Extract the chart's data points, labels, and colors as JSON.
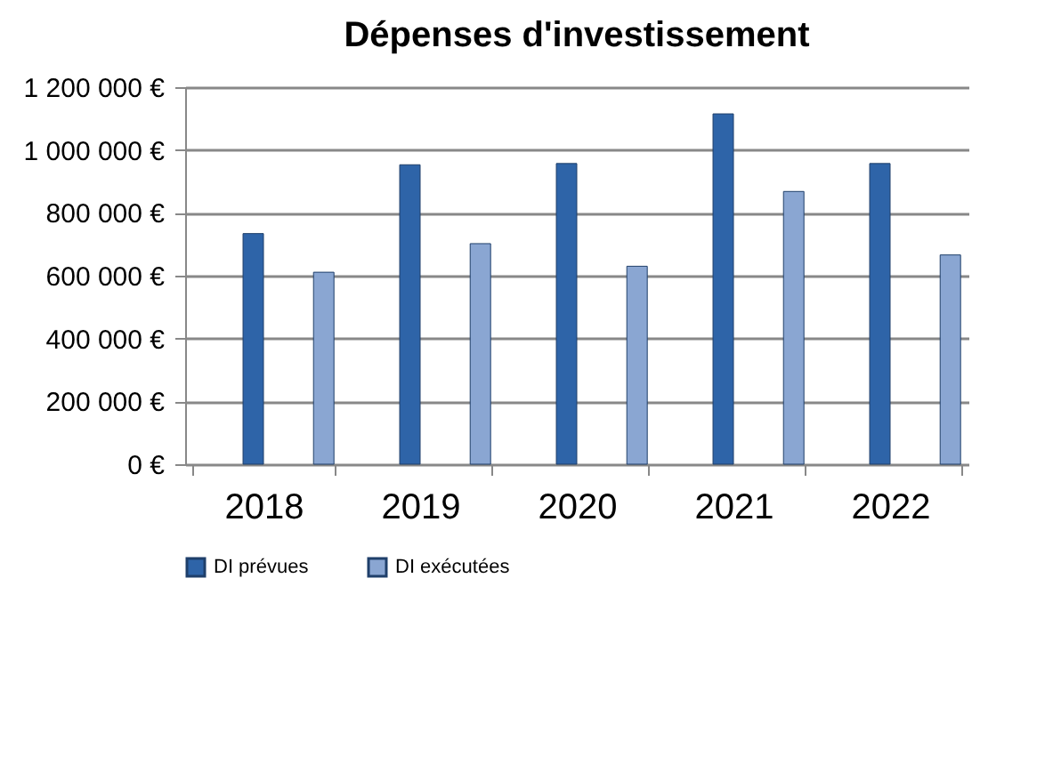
{
  "chart_data": {
    "type": "bar",
    "title": "Dépenses d'investissement",
    "categories": [
      "2018",
      "2019",
      "2020",
      "2021",
      "2022"
    ],
    "series": [
      {
        "name": "DI prévues",
        "color": "#2e64a8",
        "values": [
          734000,
          953000,
          957000,
          1115000,
          957000
        ]
      },
      {
        "name": "DI exécutées",
        "color": "#8aa6d2",
        "values": [
          611000,
          702000,
          630000,
          868000,
          666000
        ]
      }
    ],
    "ylim": [
      0,
      1200000
    ],
    "yticks": [
      {
        "value": 0,
        "label": "0 €"
      },
      {
        "value": 200000,
        "label": "200 000 €"
      },
      {
        "value": 400000,
        "label": "400 000 €"
      },
      {
        "value": 600000,
        "label": "600 000 €"
      },
      {
        "value": 800000,
        "label": "800 000 €"
      },
      {
        "value": 1000000,
        "label": "1 000 000 €"
      },
      {
        "value": 1200000,
        "label": "1 200 000 €"
      }
    ],
    "grid": "y",
    "legend": "bottom"
  }
}
